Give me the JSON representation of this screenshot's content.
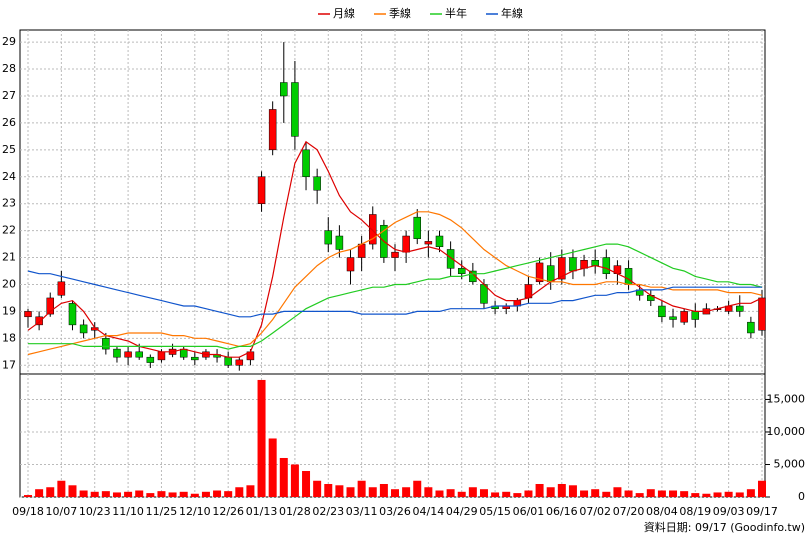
{
  "chart_data": {
    "type": "candlestick",
    "categories": [
      "09/18",
      null,
      null,
      "10/07",
      null,
      null,
      "10/23",
      null,
      null,
      "11/10",
      null,
      null,
      "11/25",
      null,
      null,
      "12/10",
      null,
      null,
      "12/26",
      null,
      null,
      "01/13",
      null,
      null,
      "01/28",
      null,
      null,
      "02/23",
      null,
      null,
      "03/11",
      null,
      null,
      "03/26",
      null,
      null,
      "04/14",
      null,
      null,
      "04/29",
      null,
      null,
      "05/15",
      null,
      null,
      "06/01",
      null,
      null,
      "06/16",
      null,
      null,
      "07/02",
      null,
      null,
      "07/20",
      null,
      null,
      "08/04",
      null,
      null,
      "08/19",
      null,
      null,
      "09/03",
      null,
      null,
      "09/17"
    ],
    "open": [
      18.8,
      18.5,
      18.9,
      19.6,
      19.3,
      18.5,
      18.3,
      18.0,
      17.6,
      17.3,
      17.5,
      17.3,
      17.2,
      17.4,
      17.6,
      17.3,
      17.3,
      17.4,
      17.3,
      17.0,
      17.2,
      23.0,
      25.0,
      27.5,
      27.5,
      25.0,
      24.0,
      22.0,
      21.8,
      20.5,
      21.0,
      21.5,
      22.2,
      21.0,
      21.2,
      22.5,
      21.5,
      21.8,
      21.3,
      20.6,
      20.5,
      20.0,
      19.2,
      19.1,
      19.2,
      19.5,
      20.1,
      20.7,
      20.2,
      21.0,
      20.6,
      20.9,
      21.0,
      20.4,
      20.6,
      19.8,
      19.6,
      19.2,
      18.8,
      18.6,
      19.0,
      18.9,
      19.1,
      19.0,
      19.2,
      18.6,
      18.3
    ],
    "high": [
      19.1,
      19.0,
      19.7,
      20.5,
      19.4,
      18.7,
      18.6,
      18.2,
      17.7,
      17.7,
      17.8,
      17.4,
      17.6,
      17.8,
      17.7,
      17.5,
      17.6,
      17.6,
      17.5,
      17.3,
      17.6,
      24.2,
      26.8,
      29.0,
      28.3,
      25.3,
      24.3,
      22.5,
      22.2,
      21.3,
      21.8,
      22.9,
      22.4,
      21.5,
      22.0,
      22.8,
      22.0,
      22.0,
      21.6,
      20.9,
      20.8,
      20.2,
      19.4,
      19.3,
      19.5,
      20.3,
      21.0,
      21.2,
      21.3,
      21.3,
      21.1,
      21.3,
      21.3,
      20.9,
      20.9,
      20.0,
      19.8,
      19.4,
      19.1,
      19.1,
      19.3,
      19.3,
      19.2,
      19.4,
      19.6,
      18.8,
      19.8
    ],
    "low": [
      18.4,
      18.3,
      18.8,
      19.5,
      18.3,
      18.0,
      18.0,
      17.4,
      17.1,
      17.0,
      17.2,
      16.9,
      17.1,
      17.3,
      17.2,
      17.0,
      17.2,
      17.1,
      16.9,
      16.8,
      17.0,
      22.7,
      24.8,
      26.0,
      25.0,
      23.5,
      23.0,
      21.2,
      21.0,
      20.0,
      20.5,
      21.3,
      20.8,
      20.5,
      20.8,
      21.5,
      21.0,
      21.2,
      20.3,
      20.2,
      20.0,
      19.1,
      18.9,
      18.9,
      19.0,
      19.3,
      20.0,
      19.8,
      20.0,
      20.2,
      20.3,
      20.4,
      20.2,
      20.0,
      19.8,
      19.4,
      19.2,
      18.6,
      18.4,
      18.5,
      18.4,
      18.9,
      19.0,
      18.9,
      18.8,
      18.0,
      18.1
    ],
    "close": [
      19.0,
      18.8,
      19.5,
      20.1,
      18.5,
      18.2,
      18.4,
      17.6,
      17.3,
      17.5,
      17.3,
      17.1,
      17.5,
      17.6,
      17.3,
      17.2,
      17.5,
      17.3,
      17.0,
      17.2,
      17.5,
      24.0,
      26.5,
      27.0,
      25.5,
      24.0,
      23.5,
      21.5,
      21.3,
      21.0,
      21.5,
      22.6,
      21.0,
      21.2,
      21.8,
      21.7,
      21.6,
      21.4,
      20.6,
      20.4,
      20.1,
      19.3,
      19.1,
      19.2,
      19.4,
      20.0,
      20.8,
      20.1,
      21.0,
      20.5,
      20.9,
      20.7,
      20.4,
      20.7,
      20.0,
      19.6,
      19.4,
      18.8,
      18.7,
      19.0,
      18.7,
      19.1,
      19.1,
      19.2,
      19.0,
      18.2,
      19.5
    ],
    "up_color": "#ff0000",
    "down_color": "#00cc00",
    "series": [
      {
        "name": "月線",
        "color": "#dd0000",
        "values": [
          18.3,
          18.6,
          19.0,
          19.3,
          19.4,
          19.0,
          18.4,
          18.1,
          18.0,
          17.9,
          17.7,
          17.6,
          17.5,
          17.5,
          17.6,
          17.5,
          17.4,
          17.4,
          17.3,
          17.3,
          17.5,
          18.5,
          20.3,
          22.5,
          24.5,
          25.3,
          25.0,
          24.2,
          23.3,
          22.7,
          22.4,
          22.0,
          21.6,
          21.3,
          21.2,
          21.3,
          21.4,
          21.3,
          21.0,
          20.7,
          20.4,
          20.0,
          19.6,
          19.4,
          19.4,
          19.5,
          19.8,
          20.1,
          20.3,
          20.5,
          20.6,
          20.7,
          20.6,
          20.4,
          20.2,
          19.9,
          19.6,
          19.4,
          19.2,
          19.1,
          19.0,
          19.0,
          19.1,
          19.2,
          19.3,
          19.3,
          19.5
        ]
      },
      {
        "name": "季線",
        "color": "#ff7700",
        "values": [
          17.4,
          17.5,
          17.6,
          17.7,
          17.8,
          17.9,
          18.0,
          18.1,
          18.1,
          18.2,
          18.2,
          18.2,
          18.2,
          18.1,
          18.1,
          18.0,
          18.0,
          17.9,
          17.8,
          17.7,
          17.8,
          18.2,
          18.7,
          19.3,
          19.9,
          20.3,
          20.7,
          21.0,
          21.2,
          21.3,
          21.5,
          21.7,
          22.0,
          22.3,
          22.5,
          22.7,
          22.7,
          22.6,
          22.4,
          22.1,
          21.7,
          21.3,
          21.0,
          20.7,
          20.5,
          20.3,
          20.2,
          20.1,
          20.1,
          20.0,
          20.0,
          20.0,
          20.1,
          20.1,
          20.0,
          20.0,
          19.9,
          19.9,
          19.8,
          19.8,
          19.8,
          19.8,
          19.8,
          19.7,
          19.7,
          19.7,
          19.6
        ]
      },
      {
        "name": "半年",
        "color": "#22cc22",
        "values": [
          17.8,
          17.8,
          17.8,
          17.8,
          17.8,
          17.7,
          17.7,
          17.7,
          17.7,
          17.7,
          17.7,
          17.7,
          17.7,
          17.7,
          17.7,
          17.7,
          17.7,
          17.7,
          17.6,
          17.7,
          17.7,
          17.9,
          18.2,
          18.5,
          18.8,
          19.1,
          19.3,
          19.5,
          19.6,
          19.7,
          19.8,
          19.9,
          19.9,
          20.0,
          20.0,
          20.1,
          20.2,
          20.2,
          20.3,
          20.3,
          20.4,
          20.4,
          20.5,
          20.6,
          20.7,
          20.8,
          20.9,
          21.0,
          21.1,
          21.2,
          21.3,
          21.4,
          21.5,
          21.5,
          21.4,
          21.2,
          21.0,
          20.8,
          20.6,
          20.5,
          20.3,
          20.2,
          20.1,
          20.1,
          20.0,
          20.0,
          19.9
        ]
      },
      {
        "name": "年線",
        "color": "#1155cc",
        "values": [
          20.5,
          20.4,
          20.4,
          20.3,
          20.2,
          20.1,
          20.0,
          19.9,
          19.8,
          19.7,
          19.6,
          19.5,
          19.4,
          19.3,
          19.2,
          19.2,
          19.1,
          19.0,
          18.9,
          18.8,
          18.8,
          18.9,
          18.9,
          19.0,
          19.0,
          19.0,
          19.0,
          19.0,
          19.0,
          19.0,
          18.9,
          18.9,
          18.9,
          18.9,
          18.9,
          19.0,
          19.0,
          19.0,
          19.1,
          19.1,
          19.1,
          19.1,
          19.2,
          19.2,
          19.2,
          19.3,
          19.3,
          19.3,
          19.4,
          19.4,
          19.5,
          19.6,
          19.6,
          19.7,
          19.7,
          19.8,
          19.8,
          19.8,
          19.9,
          19.9,
          19.9,
          19.9,
          19.9,
          19.9,
          19.9,
          19.9,
          19.9
        ]
      }
    ],
    "ylim": [
      16.75,
      29.45
    ],
    "yticks": [
      17,
      18,
      19,
      20,
      21,
      22,
      23,
      24,
      25,
      26,
      27,
      28,
      29
    ],
    "grid": true,
    "legend": "top",
    "volume": {
      "color": "#ff0000",
      "values": [
        300,
        1200,
        1500,
        2500,
        1800,
        1000,
        800,
        900,
        700,
        800,
        1000,
        600,
        900,
        700,
        800,
        500,
        800,
        1000,
        900,
        1500,
        1800,
        18000,
        9000,
        6000,
        5000,
        4000,
        2500,
        2000,
        1800,
        1500,
        2500,
        1500,
        2000,
        1200,
        1500,
        2500,
        1500,
        1000,
        1200,
        800,
        1500,
        1200,
        700,
        800,
        600,
        1000,
        2000,
        1500,
        2000,
        1800,
        1000,
        1200,
        800,
        1500,
        1000,
        600,
        1200,
        1000,
        1000,
        900,
        600,
        500,
        700,
        800,
        700,
        1200,
        2500
      ],
      "ylim": [
        0,
        18300
      ],
      "yticks": [
        0,
        {
          "value": 5000,
          "label": "5,000"
        },
        {
          "value": 10000,
          "label": "10,000"
        },
        {
          "value": 15000,
          "label": "15,000"
        }
      ]
    },
    "footer": "資料日期: 09/17 (Goodinfo.tw)"
  }
}
